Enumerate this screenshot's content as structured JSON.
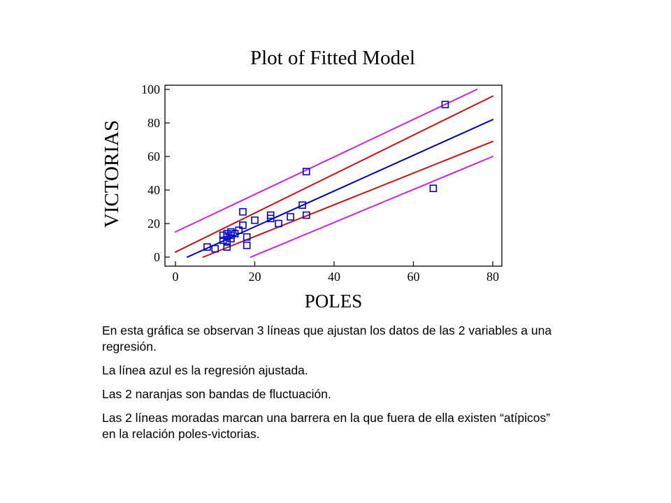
{
  "chart_data": {
    "type": "scatter",
    "title": "Plot of Fitted Model",
    "xlabel": "POLES",
    "ylabel": "VICTORIAS",
    "xlim": [
      0,
      80
    ],
    "ylim": [
      0,
      100
    ],
    "xticks": [
      0,
      20,
      40,
      60,
      80
    ],
    "yticks": [
      0,
      20,
      40,
      60,
      80,
      100
    ],
    "grid": false,
    "points": [
      {
        "x": 8,
        "y": 6
      },
      {
        "x": 10,
        "y": 5
      },
      {
        "x": 12,
        "y": 13
      },
      {
        "x": 12,
        "y": 10
      },
      {
        "x": 13,
        "y": 14
      },
      {
        "x": 13,
        "y": 12
      },
      {
        "x": 13,
        "y": 9
      },
      {
        "x": 13,
        "y": 6
      },
      {
        "x": 14,
        "y": 15
      },
      {
        "x": 14,
        "y": 13
      },
      {
        "x": 14,
        "y": 11
      },
      {
        "x": 15,
        "y": 14
      },
      {
        "x": 16,
        "y": 16
      },
      {
        "x": 17,
        "y": 27
      },
      {
        "x": 17,
        "y": 19
      },
      {
        "x": 18,
        "y": 12
      },
      {
        "x": 18,
        "y": 7
      },
      {
        "x": 20,
        "y": 22
      },
      {
        "x": 24,
        "y": 25
      },
      {
        "x": 24,
        "y": 23
      },
      {
        "x": 26,
        "y": 20
      },
      {
        "x": 29,
        "y": 24
      },
      {
        "x": 32,
        "y": 31
      },
      {
        "x": 33,
        "y": 51
      },
      {
        "x": 33,
        "y": 25
      },
      {
        "x": 65,
        "y": 41
      },
      {
        "x": 68,
        "y": 91
      }
    ],
    "lines": [
      {
        "role": "fitted",
        "color": "#0000b0",
        "x": [
          3,
          80
        ],
        "y": [
          0,
          82
        ]
      },
      {
        "role": "confidence-upper",
        "color": "#cc1111",
        "x": [
          0,
          80
        ],
        "y": [
          3,
          96
        ]
      },
      {
        "role": "confidence-lower",
        "color": "#cc1111",
        "x": [
          7,
          80
        ],
        "y": [
          0,
          69
        ]
      },
      {
        "role": "prediction-upper",
        "color": "#cc22dd",
        "x": [
          0,
          76
        ],
        "y": [
          15,
          100
        ]
      },
      {
        "role": "prediction-lower",
        "color": "#cc22dd",
        "x": [
          19,
          80
        ],
        "y": [
          0,
          60
        ]
      }
    ],
    "marker_color": "#0000cc",
    "axis_color": "#000000"
  },
  "notes": {
    "p1": "En esta gráfica se observan 3 líneas que ajustan los datos de las 2 variables a una regresión.",
    "p2": "La línea azul es la regresión ajustada.",
    "p3": "Las 2 naranjas son bandas de fluctuación.",
    "p4": "Las 2 líneas moradas marcan una barrera en la que fuera de ella existen “atípicos” en la relación poles-victorias."
  }
}
